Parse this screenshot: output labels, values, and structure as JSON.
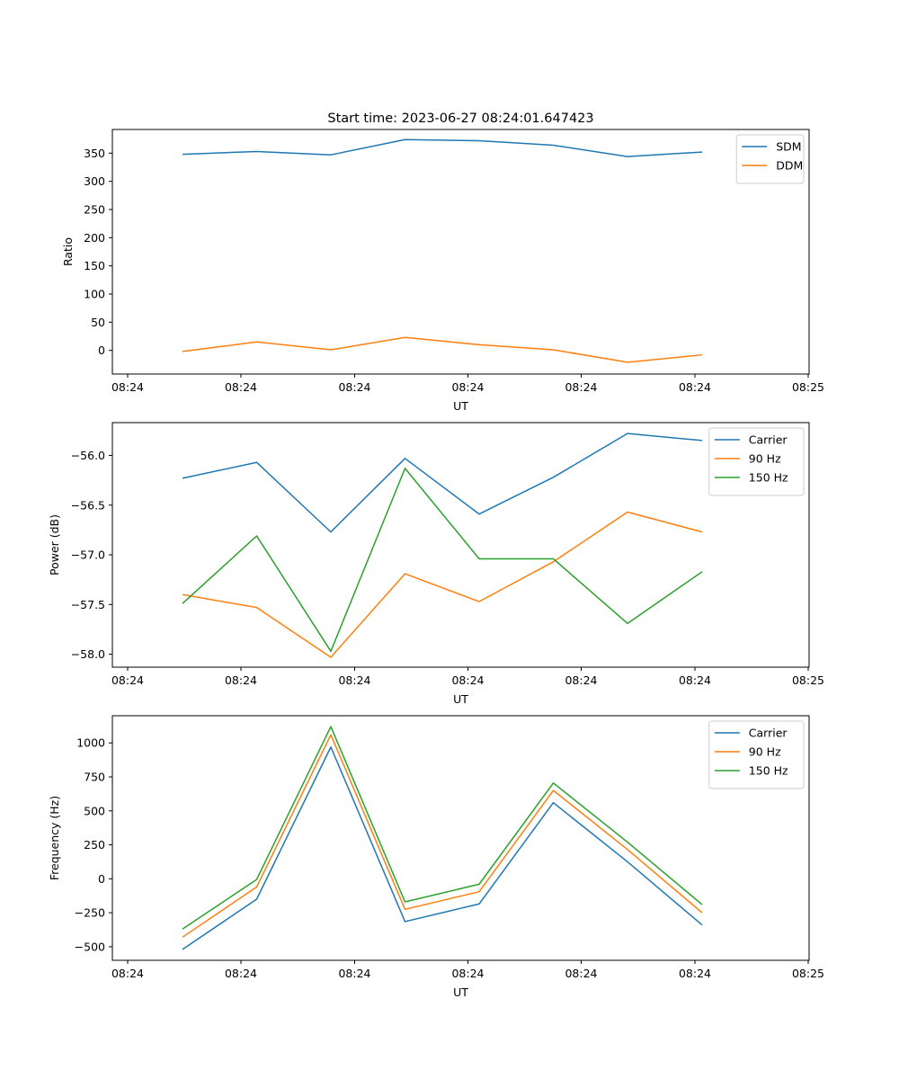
{
  "figure": {
    "title": "Start time: 2023-06-27 08:24:01.647423"
  },
  "chart_data": [
    {
      "type": "line",
      "title": "Start time: 2023-06-27 08:24:01.647423",
      "xlabel": "UT",
      "ylabel": "Ratio",
      "x_tick_labels": [
        "08:24",
        "08:24",
        "08:24",
        "08:24",
        "08:24",
        "08:24",
        "08:25"
      ],
      "y_ticks": [
        0,
        50,
        100,
        150,
        200,
        250,
        300,
        350
      ],
      "ylim": [
        -42,
        392
      ],
      "legend_position": "top-right",
      "grid": false,
      "series": [
        {
          "name": "SDM",
          "color": "#1f77b4",
          "values": [
            348,
            353,
            347,
            374,
            372,
            364,
            344,
            352
          ]
        },
        {
          "name": "DDM",
          "color": "#ff7f0e",
          "values": [
            -2,
            15,
            1,
            23,
            10,
            1,
            -21,
            -8
          ]
        }
      ]
    },
    {
      "type": "line",
      "title": "",
      "xlabel": "UT",
      "ylabel": "Power (dB)",
      "x_tick_labels": [
        "08:24",
        "08:24",
        "08:24",
        "08:24",
        "08:24",
        "08:24",
        "08:25"
      ],
      "y_ticks": [
        -58.0,
        -57.5,
        -57.0,
        -56.5,
        -56.0
      ],
      "y_tick_labels": [
        "−58.0",
        "−57.5",
        "−57.0",
        "−56.5",
        "−56.0"
      ],
      "ylim": [
        -58.13,
        -55.67
      ],
      "legend_position": "top-right",
      "grid": false,
      "series": [
        {
          "name": "Carrier",
          "color": "#1f77b4",
          "values": [
            -56.23,
            -56.07,
            -56.77,
            -56.03,
            -56.59,
            -56.22,
            -55.78,
            -55.85
          ]
        },
        {
          "name": "90 Hz",
          "color": "#ff7f0e",
          "values": [
            -57.4,
            -57.53,
            -58.03,
            -57.19,
            -57.47,
            -57.07,
            -56.57,
            -56.77
          ]
        },
        {
          "name": "150 Hz",
          "color": "#2ca02c",
          "values": [
            -57.49,
            -56.81,
            -57.97,
            -56.13,
            -57.04,
            -57.04,
            -57.69,
            -57.17
          ]
        }
      ]
    },
    {
      "type": "line",
      "title": "",
      "xlabel": "UT",
      "ylabel": "Frequency (Hz)",
      "x_tick_labels": [
        "08:24",
        "08:24",
        "08:24",
        "08:24",
        "08:24",
        "08:24",
        "08:25"
      ],
      "y_ticks": [
        -500,
        -250,
        0,
        250,
        500,
        750,
        1000
      ],
      "y_tick_labels": [
        "−500",
        "−250",
        "0",
        "250",
        "500",
        "750",
        "1000"
      ],
      "ylim": [
        -600,
        1200
      ],
      "legend_position": "top-right",
      "grid": false,
      "series": [
        {
          "name": "Carrier",
          "color": "#1f77b4",
          "values": [
            -520,
            -150,
            970,
            -315,
            -185,
            560,
            125,
            -340
          ]
        },
        {
          "name": "90 Hz",
          "color": "#ff7f0e",
          "values": [
            -430,
            -60,
            1060,
            -225,
            -95,
            650,
            215,
            -250
          ]
        },
        {
          "name": "150 Hz",
          "color": "#2ca02c",
          "values": [
            -370,
            -5,
            1120,
            -170,
            -40,
            705,
            270,
            -190
          ]
        }
      ]
    }
  ]
}
